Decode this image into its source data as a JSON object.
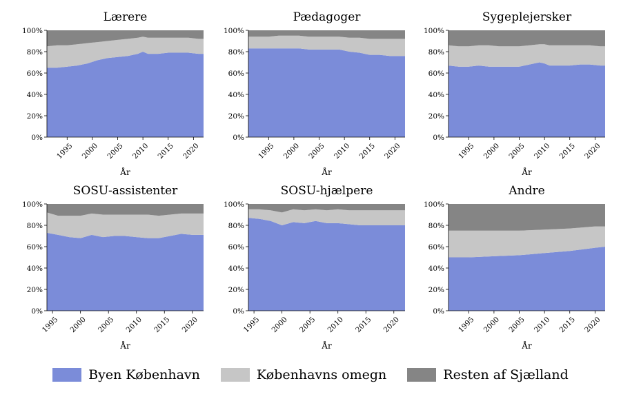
{
  "colors": {
    "byen": "#7b8cd9",
    "omegn": "#c6c6c6",
    "resten": "#858585"
  },
  "legend": {
    "byen": "Byen København",
    "omegn": "Københavns omegn",
    "resten": "Resten af Sjælland"
  },
  "chart_data": [
    {
      "type": "area",
      "stacked": true,
      "title": "Lærere",
      "xlabel": "År",
      "ylabel": "",
      "x_range": [
        1991,
        2022
      ],
      "ylim": [
        0,
        100
      ],
      "x_ticks": [
        "1995",
        "2000",
        "2005",
        "2010",
        "2015",
        "2020"
      ],
      "y_ticks": [
        "0%",
        "20%",
        "40%",
        "60%",
        "80%",
        "100%"
      ],
      "series": [
        {
          "name": "Byen København",
          "cumulative_top": [
            [
              1991,
              65
            ],
            [
              1993,
              65
            ],
            [
              1995,
              66
            ],
            [
              1997,
              67
            ],
            [
              1999,
              69
            ],
            [
              2001,
              72
            ],
            [
              2003,
              74
            ],
            [
              2005,
              75
            ],
            [
              2007,
              76
            ],
            [
              2009,
              78
            ],
            [
              2010,
              80
            ],
            [
              2011,
              78
            ],
            [
              2013,
              78
            ],
            [
              2015,
              79
            ],
            [
              2017,
              79
            ],
            [
              2019,
              79
            ],
            [
              2021,
              78
            ],
            [
              2022,
              78
            ]
          ]
        },
        {
          "name": "Københavns omegn",
          "cumulative_top": [
            [
              1991,
              85
            ],
            [
              1993,
              86
            ],
            [
              1995,
              86
            ],
            [
              1997,
              87
            ],
            [
              1999,
              88
            ],
            [
              2001,
              89
            ],
            [
              2003,
              90
            ],
            [
              2005,
              91
            ],
            [
              2007,
              92
            ],
            [
              2009,
              93
            ],
            [
              2010,
              94
            ],
            [
              2011,
              93
            ],
            [
              2013,
              93
            ],
            [
              2015,
              93
            ],
            [
              2017,
              93
            ],
            [
              2019,
              93
            ],
            [
              2021,
              92
            ],
            [
              2022,
              92
            ]
          ]
        },
        {
          "name": "Resten af Sjælland",
          "cumulative_top": [
            [
              1991,
              100
            ],
            [
              2022,
              100
            ]
          ]
        }
      ]
    },
    {
      "type": "area",
      "stacked": true,
      "title": "Pædagoger",
      "xlabel": "År",
      "ylabel": "",
      "x_range": [
        1991,
        2022
      ],
      "ylim": [
        0,
        100
      ],
      "x_ticks": [
        "1995",
        "2000",
        "2005",
        "2010",
        "2015",
        "2020"
      ],
      "y_ticks": [
        "0%",
        "20%",
        "40%",
        "60%",
        "80%",
        "100%"
      ],
      "series": [
        {
          "name": "Byen København",
          "cumulative_top": [
            [
              1991,
              83
            ],
            [
              1993,
              83
            ],
            [
              1995,
              83
            ],
            [
              1997,
              83
            ],
            [
              1999,
              83
            ],
            [
              2001,
              83
            ],
            [
              2003,
              82
            ],
            [
              2005,
              82
            ],
            [
              2007,
              82
            ],
            [
              2009,
              82
            ],
            [
              2011,
              80
            ],
            [
              2013,
              79
            ],
            [
              2015,
              77
            ],
            [
              2017,
              77
            ],
            [
              2019,
              76
            ],
            [
              2021,
              76
            ],
            [
              2022,
              76
            ]
          ]
        },
        {
          "name": "Københavns omegn",
          "cumulative_top": [
            [
              1991,
              94
            ],
            [
              1993,
              94
            ],
            [
              1995,
              94
            ],
            [
              1997,
              95
            ],
            [
              1999,
              95
            ],
            [
              2001,
              95
            ],
            [
              2003,
              94
            ],
            [
              2005,
              94
            ],
            [
              2007,
              94
            ],
            [
              2009,
              94
            ],
            [
              2011,
              93
            ],
            [
              2013,
              93
            ],
            [
              2015,
              92
            ],
            [
              2017,
              92
            ],
            [
              2019,
              92
            ],
            [
              2021,
              92
            ],
            [
              2022,
              92
            ]
          ]
        },
        {
          "name": "Resten af Sjælland",
          "cumulative_top": [
            [
              1991,
              100
            ],
            [
              2022,
              100
            ]
          ]
        }
      ]
    },
    {
      "type": "area",
      "stacked": true,
      "title": "Sygeplejersker",
      "xlabel": "År",
      "ylabel": "",
      "x_range": [
        1991,
        2022
      ],
      "ylim": [
        0,
        100
      ],
      "x_ticks": [
        "1995",
        "2000",
        "2005",
        "2010",
        "2015",
        "2020"
      ],
      "y_ticks": [
        "0%",
        "20%",
        "40%",
        "60%",
        "80%",
        "100%"
      ],
      "series": [
        {
          "name": "Byen København",
          "cumulative_top": [
            [
              1991,
              67
            ],
            [
              1993,
              66
            ],
            [
              1995,
              66
            ],
            [
              1997,
              67
            ],
            [
              1999,
              66
            ],
            [
              2001,
              66
            ],
            [
              2003,
              66
            ],
            [
              2005,
              66
            ],
            [
              2007,
              68
            ],
            [
              2009,
              70
            ],
            [
              2010,
              69
            ],
            [
              2011,
              67
            ],
            [
              2013,
              67
            ],
            [
              2015,
              67
            ],
            [
              2017,
              68
            ],
            [
              2019,
              68
            ],
            [
              2021,
              67
            ],
            [
              2022,
              67
            ]
          ]
        },
        {
          "name": "Københavns omegn",
          "cumulative_top": [
            [
              1991,
              86
            ],
            [
              1993,
              85
            ],
            [
              1995,
              85
            ],
            [
              1997,
              86
            ],
            [
              1999,
              86
            ],
            [
              2001,
              85
            ],
            [
              2003,
              85
            ],
            [
              2005,
              85
            ],
            [
              2007,
              86
            ],
            [
              2009,
              87
            ],
            [
              2010,
              87
            ],
            [
              2011,
              86
            ],
            [
              2013,
              86
            ],
            [
              2015,
              86
            ],
            [
              2017,
              86
            ],
            [
              2019,
              86
            ],
            [
              2021,
              85
            ],
            [
              2022,
              85
            ]
          ]
        },
        {
          "name": "Resten af Sjælland",
          "cumulative_top": [
            [
              1991,
              100
            ],
            [
              2022,
              100
            ]
          ]
        }
      ]
    },
    {
      "type": "area",
      "stacked": true,
      "title": "SOSU-assistenter",
      "xlabel": "År",
      "ylabel": "",
      "x_range": [
        1994,
        2022
      ],
      "ylim": [
        0,
        100
      ],
      "x_ticks": [
        "1995",
        "2000",
        "2005",
        "2010",
        "2015",
        "2020"
      ],
      "y_ticks": [
        "0%",
        "20%",
        "40%",
        "60%",
        "80%",
        "100%"
      ],
      "series": [
        {
          "name": "Byen København",
          "cumulative_top": [
            [
              1994,
              73
            ],
            [
              1996,
              71
            ],
            [
              1998,
              69
            ],
            [
              2000,
              68
            ],
            [
              2002,
              71
            ],
            [
              2004,
              69
            ],
            [
              2006,
              70
            ],
            [
              2008,
              70
            ],
            [
              2010,
              69
            ],
            [
              2012,
              68
            ],
            [
              2014,
              68
            ],
            [
              2016,
              70
            ],
            [
              2018,
              72
            ],
            [
              2020,
              71
            ],
            [
              2022,
              71
            ]
          ]
        },
        {
          "name": "Københavns omegn",
          "cumulative_top": [
            [
              1994,
              92
            ],
            [
              1996,
              89
            ],
            [
              1998,
              89
            ],
            [
              2000,
              89
            ],
            [
              2002,
              91
            ],
            [
              2004,
              90
            ],
            [
              2006,
              90
            ],
            [
              2008,
              90
            ],
            [
              2010,
              90
            ],
            [
              2012,
              90
            ],
            [
              2014,
              89
            ],
            [
              2016,
              90
            ],
            [
              2018,
              91
            ],
            [
              2020,
              91
            ],
            [
              2022,
              91
            ]
          ]
        },
        {
          "name": "Resten af Sjælland",
          "cumulative_top": [
            [
              1994,
              100
            ],
            [
              2022,
              100
            ]
          ]
        }
      ]
    },
    {
      "type": "area",
      "stacked": true,
      "title": "SOSU-hjælpere",
      "xlabel": "År",
      "ylabel": "",
      "x_range": [
        1994,
        2022
      ],
      "ylim": [
        0,
        100
      ],
      "x_ticks": [
        "1995",
        "2000",
        "2005",
        "2010",
        "2015",
        "2020"
      ],
      "y_ticks": [
        "0%",
        "20%",
        "40%",
        "60%",
        "80%",
        "100%"
      ],
      "series": [
        {
          "name": "Byen København",
          "cumulative_top": [
            [
              1994,
              87
            ],
            [
              1996,
              86
            ],
            [
              1998,
              84
            ],
            [
              2000,
              80
            ],
            [
              2002,
              83
            ],
            [
              2004,
              82
            ],
            [
              2006,
              84
            ],
            [
              2008,
              82
            ],
            [
              2010,
              82
            ],
            [
              2012,
              81
            ],
            [
              2014,
              80
            ],
            [
              2016,
              80
            ],
            [
              2018,
              80
            ],
            [
              2020,
              80
            ],
            [
              2022,
              80
            ]
          ]
        },
        {
          "name": "Københavns omegn",
          "cumulative_top": [
            [
              1994,
              95
            ],
            [
              1996,
              95
            ],
            [
              1998,
              94
            ],
            [
              2000,
              92
            ],
            [
              2002,
              95
            ],
            [
              2004,
              94
            ],
            [
              2006,
              95
            ],
            [
              2008,
              94
            ],
            [
              2010,
              95
            ],
            [
              2012,
              94
            ],
            [
              2014,
              94
            ],
            [
              2016,
              94
            ],
            [
              2018,
              94
            ],
            [
              2020,
              94
            ],
            [
              2022,
              94
            ]
          ]
        },
        {
          "name": "Resten af Sjælland",
          "cumulative_top": [
            [
              1994,
              100
            ],
            [
              2022,
              100
            ]
          ]
        }
      ]
    },
    {
      "type": "area",
      "stacked": true,
      "title": "Andre",
      "xlabel": "År",
      "ylabel": "",
      "x_range": [
        1991,
        2022
      ],
      "ylim": [
        0,
        100
      ],
      "x_ticks": [
        "1995",
        "2000",
        "2005",
        "2010",
        "2015",
        "2020"
      ],
      "y_ticks": [
        "0%",
        "20%",
        "40%",
        "60%",
        "80%",
        "100%"
      ],
      "series": [
        {
          "name": "Byen København",
          "cumulative_top": [
            [
              1991,
              50
            ],
            [
              1995,
              50
            ],
            [
              2000,
              51
            ],
            [
              2005,
              52
            ],
            [
              2010,
              54
            ],
            [
              2015,
              56
            ],
            [
              2020,
              59
            ],
            [
              2022,
              60
            ]
          ]
        },
        {
          "name": "Københavns omegn",
          "cumulative_top": [
            [
              1991,
              75
            ],
            [
              1995,
              75
            ],
            [
              2000,
              75
            ],
            [
              2005,
              75
            ],
            [
              2010,
              76
            ],
            [
              2015,
              77
            ],
            [
              2020,
              79
            ],
            [
              2022,
              79
            ]
          ]
        },
        {
          "name": "Resten af Sjælland",
          "cumulative_top": [
            [
              1991,
              100
            ],
            [
              2022,
              100
            ]
          ]
        }
      ]
    }
  ]
}
